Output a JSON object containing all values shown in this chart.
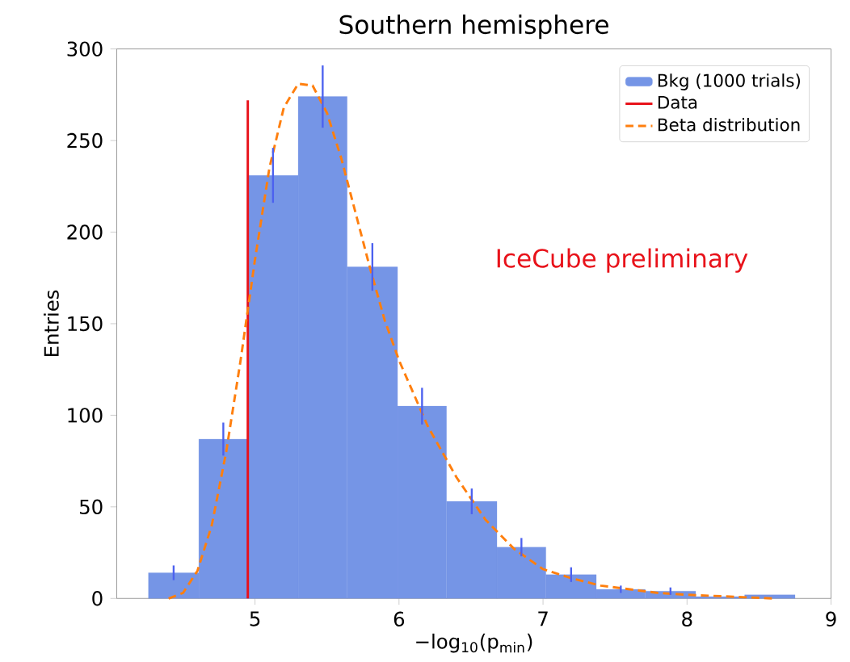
{
  "chart_data": {
    "type": "histogram",
    "title": "Southern hemisphere",
    "xlabel": "−log$_{10}$(p$_{min}$)",
    "ylabel": "Entries",
    "annotations": [
      "IceCube preliminary"
    ],
    "xlim": [
      4.04,
      9.0
    ],
    "ylim": [
      0,
      300
    ],
    "xticks": [
      5,
      6,
      7,
      8,
      9
    ],
    "yticks": [
      0,
      50,
      100,
      150,
      200,
      250,
      300
    ],
    "legend": "top right",
    "series": [
      {
        "name": "Bkg (1000 trials)",
        "color": "#7595e6",
        "bins": [
          4.26,
          4.61,
          4.95,
          5.3,
          5.64,
          5.99,
          6.33,
          6.68,
          7.02,
          7.37,
          7.71,
          8.06,
          8.4,
          8.75
        ],
        "values": [
          14,
          87,
          231,
          274,
          181,
          105,
          53,
          28,
          13,
          5,
          4,
          1,
          2
        ],
        "errors": [
          4,
          9,
          15,
          17,
          13,
          10,
          7,
          5,
          4,
          2,
          2,
          null,
          null
        ]
      },
      {
        "name": "Data",
        "type": "line",
        "color": "#e8121a",
        "x": [
          4.95,
          4.95
        ],
        "values": [
          0,
          272
        ]
      },
      {
        "name": "Beta distribution",
        "type": "line",
        "line_style": "dashed",
        "color": "#ff7f0e",
        "x": [
          4.4,
          4.5,
          4.6,
          4.7,
          4.8,
          4.9,
          5.0,
          5.1,
          5.2,
          5.3,
          5.4,
          5.5,
          5.6,
          5.7,
          5.8,
          5.9,
          6.0,
          6.2,
          6.4,
          6.6,
          6.8,
          7.0,
          7.2,
          7.4,
          7.6,
          7.8,
          8.0,
          8.3,
          8.6
        ],
        "values": [
          0,
          3,
          15,
          40,
          80,
          130,
          185,
          235,
          268,
          281,
          280,
          265,
          240,
          210,
          180,
          152,
          130,
          94,
          66,
          43,
          27,
          16,
          11,
          7,
          5,
          3,
          2,
          1,
          0
        ]
      }
    ]
  }
}
